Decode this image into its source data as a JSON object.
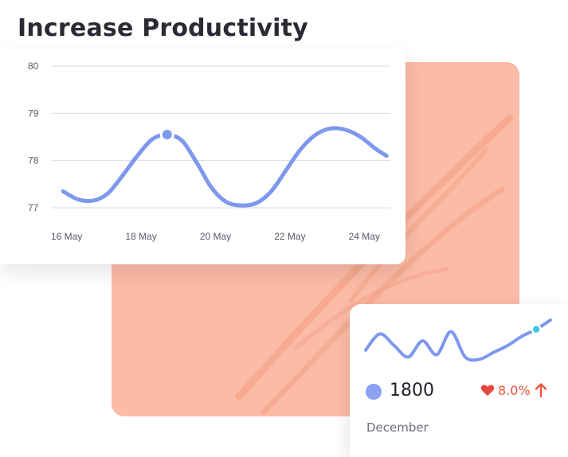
{
  "title": "Increase Productivity",
  "colors": {
    "accent_line": "#7e98ee",
    "highlight_dot": "#7e98ee",
    "spark_dot": "#3ec7e0",
    "peach_bg": "#fbbba6",
    "peach_stroke": "#f29c80",
    "change_color": "#e8553e",
    "title_color": "#2a2a33"
  },
  "chart_data": {
    "type": "line",
    "title": "",
    "xlabel": "",
    "ylabel": "",
    "x_tick_labels": [
      "16 May",
      "18 May",
      "20 May",
      "22 May",
      "24 May"
    ],
    "y_tick_labels": [
      "80",
      "79",
      "78",
      "77"
    ],
    "y_ticks": [
      80,
      79,
      78,
      77
    ],
    "ylim": [
      77,
      80
    ],
    "xlim": [
      15.6,
      24.7
    ],
    "grid": true,
    "legend": "none",
    "series": [
      {
        "x": [
          15.9,
          16.3,
          16.7,
          17.1,
          17.5,
          17.9,
          18.3,
          18.7,
          19.1,
          19.5,
          19.9,
          20.3,
          20.7,
          21.1,
          21.5,
          21.9,
          22.3,
          22.7,
          23.1,
          23.5,
          23.9,
          24.3,
          24.6
        ],
        "y": [
          77.35,
          77.18,
          77.15,
          77.3,
          77.68,
          78.1,
          78.45,
          78.55,
          78.42,
          77.95,
          77.42,
          77.12,
          77.05,
          77.1,
          77.35,
          77.8,
          78.25,
          78.55,
          78.68,
          78.65,
          78.5,
          78.25,
          78.1
        ]
      }
    ],
    "highlight_point": {
      "x": 18.7,
      "y": 78.55
    }
  },
  "stat_card": {
    "value": "1800",
    "change": "8.0%",
    "month": "December",
    "heart_icon": "heart-icon",
    "arrow_icon": "arrow-up-icon",
    "sparkline": [
      0.35,
      0.7,
      0.45,
      0.2,
      0.55,
      0.25,
      0.75,
      0.2,
      0.15,
      0.3,
      0.45,
      0.65,
      0.8,
      1.0
    ],
    "spark_highlight_index": 12
  }
}
